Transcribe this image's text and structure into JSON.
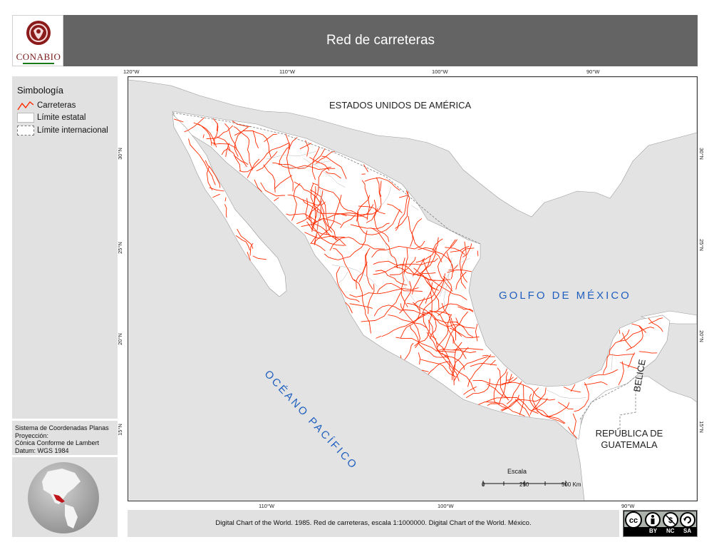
{
  "header": {
    "title": "Red de carreteras"
  },
  "logo": {
    "text": "CONABIO"
  },
  "legend": {
    "title": "Simbología",
    "items": [
      {
        "label": "Carreteras",
        "symbol": "red-line"
      },
      {
        "label": "Límite estatal",
        "symbol": "white-box"
      },
      {
        "label": "Límite internacional",
        "symbol": "dashed-box"
      }
    ]
  },
  "coordinate_system": {
    "line1": "Sistema de Coordenadas Planas",
    "line2": "Proyección:",
    "line3": "Cónica Conforme de Lambert",
    "line4": "Datum: WGS 1984"
  },
  "map": {
    "labels": {
      "usa": "ESTADOS UNIDOS DE AMÉRICA",
      "gulf": "GOLFO DE MÉXICO",
      "pacific": "OCÉANO PACÍFICO",
      "belize": "BELICE",
      "guatemala_1": "REPÚBLICA DE",
      "guatemala_2": "GUATEMALA"
    },
    "top_ticks": [
      "120°W",
      "110°W",
      "100°W",
      "90°W"
    ],
    "bottom_ticks": [
      "110°W",
      "100°W",
      "90°W"
    ],
    "left_ticks": [
      "30°N",
      "25°N",
      "20°N",
      "15°N"
    ],
    "right_ticks": [
      "30°N",
      "25°N",
      "20°N",
      "15°N"
    ],
    "scale": {
      "title": "Escala",
      "labels": [
        "0",
        "250",
        "500 Km"
      ]
    }
  },
  "source": "Digital Chart of the World. 1985. Red de carreteras, escala 1:1000000. Digital Chart of the World. México.",
  "license": {
    "by": "BY",
    "nc": "NC",
    "sa": "SA"
  },
  "colors": {
    "roads": "#ff2a00",
    "water": "#e3e3e3",
    "land_mexico": "#ffffff",
    "land_neighbors": "#ffffff",
    "ocean_label": "#1f5fbf",
    "header": "#646464",
    "panel": "#e1e1e1"
  }
}
